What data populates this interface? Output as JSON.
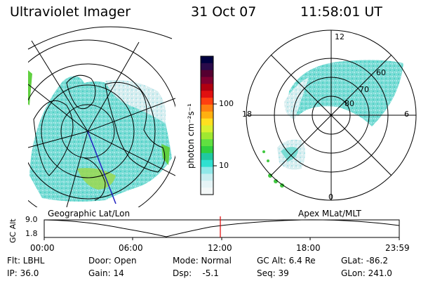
{
  "header": {
    "title": "Ultraviolet Imager",
    "date": "31 Oct 07",
    "time": "11:58:01 UT"
  },
  "left_map": {
    "caption": "Geographic Lat/Lon"
  },
  "right_map": {
    "caption": "Apex MLat/MLT",
    "mlt_labels": {
      "top": "12",
      "left": "18",
      "right": "6",
      "bottom": "0"
    },
    "lat_labels": [
      "60",
      "70",
      "80"
    ]
  },
  "colorbar": {
    "unit_label": "photon cm⁻²s⁻¹",
    "tick_100": "100",
    "tick_10": "10",
    "colors": [
      "#000040",
      "#2a0a4a",
      "#550030",
      "#800030",
      "#b00010",
      "#e01010",
      "#ff4010",
      "#ff8010",
      "#ffb010",
      "#ffe020",
      "#d8f030",
      "#a0e830",
      "#60e040",
      "#30d040",
      "#20c8a0",
      "#30e0d0",
      "#90e8e8",
      "#c8eef0",
      "#e6f4f6",
      "#f4f8f8"
    ]
  },
  "altitude_plot": {
    "ylabel": "GC Alt",
    "ytick_top": "9.0",
    "ytick_bottom": "1.8",
    "xticks": [
      "00:00",
      "06:00",
      "12:00",
      "18:00",
      "23:59"
    ],
    "marker_color": "#e00000"
  },
  "info": {
    "flt": "Flt: LBHL",
    "ip": "IP: 36.0",
    "door": "Door: Open",
    "gain": "Gain: 14",
    "mode": "Mode: Normal",
    "dsp": "Dsp:    -5.1",
    "gcalt": "GC Alt: 6.4 Re",
    "seq": "Seq: 39",
    "glat": "GLat: -86.2",
    "glon": "GLon: 241.0"
  },
  "colors": {
    "aurora_fill": "#70dcd4",
    "aurora_light": "#b8ecee",
    "aurora_green": "#60d040",
    "grid": "#000000"
  }
}
